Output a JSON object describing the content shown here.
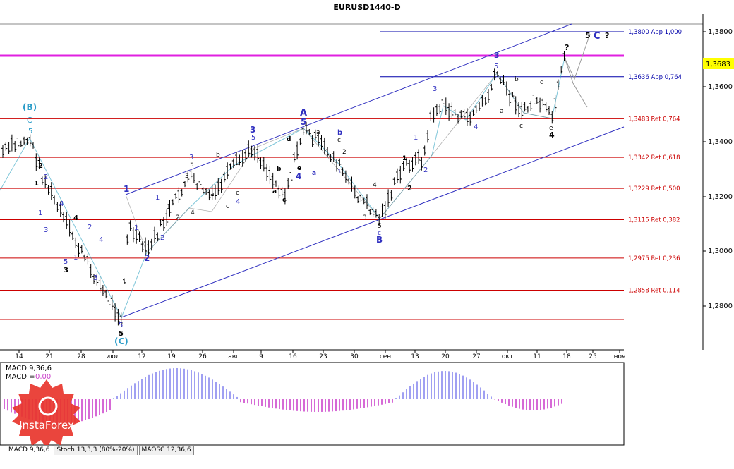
{
  "window": {
    "title": "EURUSD1440-D"
  },
  "price_axis": {
    "ticks": [
      "1,3800",
      "1,3600",
      "1,3400",
      "1,3200",
      "1,3000",
      "1,2800"
    ],
    "current_price": "1,3683",
    "current_price_color": "#ffff00"
  },
  "date_axis": {
    "labels": [
      "14",
      "21",
      "28",
      "июл",
      "12",
      "19",
      "26",
      "авг",
      "9",
      "16",
      "23",
      "30",
      "сен",
      "13",
      "20",
      "27",
      "окт",
      "11",
      "18",
      "25",
      "ноя"
    ]
  },
  "levels": [
    {
      "label": "1,3800 App 1,000",
      "color": "#0000aa"
    },
    {
      "label": "1,3636 App 0,764",
      "color": "#0000aa"
    },
    {
      "label": "1,3483 Ret 0,764",
      "color": "#cc0000"
    },
    {
      "label": "1,3342 Ret 0,618",
      "color": "#cc0000"
    },
    {
      "label": "1,3229 Ret 0,500",
      "color": "#cc0000"
    },
    {
      "label": "1,3115 Ret 0,382",
      "color": "#cc0000"
    },
    {
      "label": "1,2975 Ret 0,236",
      "color": "#cc0000"
    },
    {
      "label": "1,2858 Ret 0,114",
      "color": "#cc0000"
    }
  ],
  "wave_labels": {
    "big_B": "(B)",
    "big_C_open": "(C)",
    "C1": "C",
    "five": "5",
    "one": "1",
    "two": "2",
    "three": "3",
    "four": "4",
    "A": "A",
    "B": "B",
    "a": "a",
    "b": "b",
    "c": "c",
    "d": "d",
    "e": "e",
    "q": "?",
    "C": "C"
  },
  "indicator": {
    "title": "MACD 9,36,6",
    "value_label": "MACD = ",
    "value": "0,00"
  },
  "tabs": [
    "MACD 9,36,6",
    "Stoch 13,3,3 (80%-20%)",
    "MAOSC 12,36,6"
  ],
  "logo": {
    "text": "InstaForex",
    "color": "#e8352d"
  },
  "chart_data": {
    "type": "line",
    "symbol": "EURUSD",
    "title": "EURUSD1440-D",
    "ylim": [
      1.271,
      1.386
    ],
    "swing_points": {
      "dates": [
        "14",
        "21",
        "28",
        "июл",
        "12",
        "19",
        "26",
        "авг",
        "9",
        "16",
        "23",
        "30",
        "сен",
        "13",
        "20",
        "27",
        "окт",
        "11",
        "18"
      ],
      "series": [
        {
          "values": [
            1.34,
            1.316,
            1.302,
            1.276,
            1.299,
            1.322,
            1.33,
            1.326,
            1.339,
            1.345,
            1.33,
            1.312,
            1.325,
            1.333,
            1.356,
            1.348,
            1.365,
            1.349,
            1.3683
          ]
        }
      ]
    },
    "grid": false,
    "legend": "none"
  }
}
